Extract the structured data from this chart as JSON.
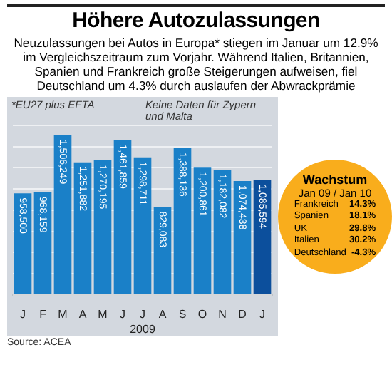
{
  "chart_data": [
    {
      "type": "bar",
      "title": "Höhere Autozulassungen",
      "subtitle": "Neuzulassungen bei Autos in Europa* stiegen im Januar um 12.9% im Vergleichszeitraum zum Vorjahr. Während Italien, Britannien, Spanien und Frankreich große Steigerungen aufweisen, fiel Deutschland um 4.3% durch auslaufen der Abwrackprämie",
      "categories": [
        "J",
        "F",
        "M",
        "A",
        "M",
        "J",
        "J",
        "A",
        "S",
        "O",
        "N",
        "D",
        "J"
      ],
      "values": [
        958500,
        968159,
        1506249,
        1251882,
        1270195,
        1461859,
        1298711,
        829083,
        1388136,
        1200861,
        1182082,
        1074438,
        1085594
      ],
      "colors": [
        "#1a80c8",
        "#1a80c8",
        "#1a80c8",
        "#1a80c8",
        "#1a80c8",
        "#1a80c8",
        "#1a80c8",
        "#1a80c8",
        "#1a80c8",
        "#1a80c8",
        "#1a80c8",
        "#1a80c8",
        "#0c4f9c"
      ],
      "xlabel": "2009",
      "value_labels": [
        "958,500",
        "968,159",
        "1,506,249",
        "1,251,882",
        "1,270,195",
        "1,461,859",
        "1,298,711",
        "829,083",
        "1,388,136",
        "1,200,861",
        "1,182,082",
        "1,074,438",
        "1,085,594"
      ],
      "grid": "y",
      "legend": false,
      "annotations": [
        "*EU27 plus EFTA",
        "Keine Daten für Zypern und Malta",
        "Source: ACEA"
      ]
    },
    {
      "type": "other",
      "title": "Wachstum",
      "subtitle": "Jan 09 / Jan 10",
      "categories": [
        "Frankreich",
        "Spanien",
        "UK",
        "Italien",
        "Deutschland"
      ],
      "value_labels": [
        "14.3%",
        "18.1%",
        "29.8%",
        "30.2%",
        "-4.3%"
      ]
    }
  ]
}
